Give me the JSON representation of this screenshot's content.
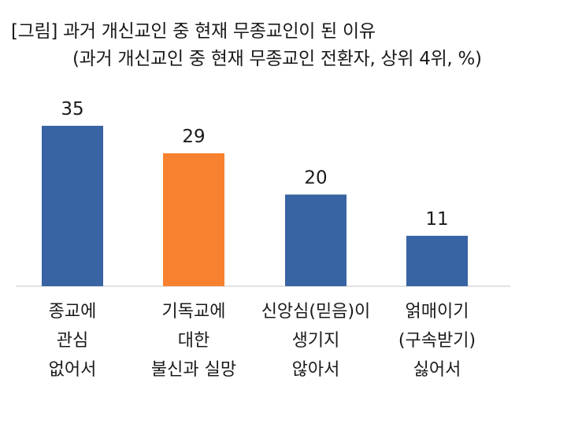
{
  "chart_data": {
    "type": "bar",
    "title": "[그림] 과거 개신교인 중 현재 무종교인이 된 이유",
    "subtitle": "(과거 개신교인 중 현재 무종교인 전환자, 상위 4위, %)",
    "categories": [
      [
        "종교에",
        "관심",
        "없어서"
      ],
      [
        "기독교에",
        "대한",
        "불신과 실망"
      ],
      [
        "신앙심(믿음)이",
        "생기지",
        "않아서"
      ],
      [
        "얽매이기",
        "(구속받기)",
        "싫어서"
      ]
    ],
    "values": [
      35,
      29,
      20,
      11
    ],
    "colors": [
      "#3864a3",
      "#f7812e",
      "#3864a3",
      "#3864a3"
    ],
    "ylim": [
      0,
      35
    ],
    "grid": false,
    "legend": "none"
  }
}
